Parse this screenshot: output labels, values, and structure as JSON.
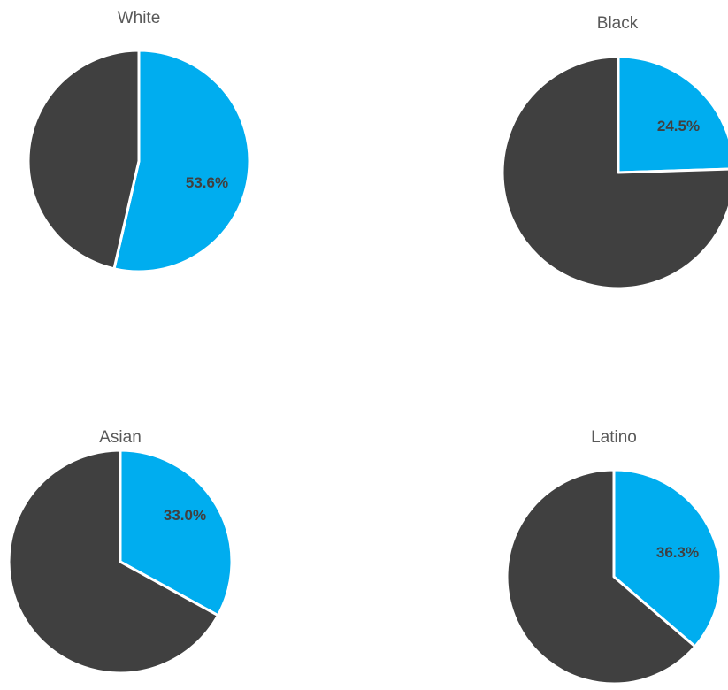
{
  "chart_data": [
    {
      "type": "pie",
      "title": "White",
      "categories": [
        "",
        ""
      ],
      "values": [
        53.6,
        46.4
      ],
      "data_labels": [
        "53.6%",
        ""
      ],
      "colors": [
        "#00ADEF",
        "#404040"
      ]
    },
    {
      "type": "pie",
      "title": "Black",
      "categories": [
        "",
        ""
      ],
      "values": [
        24.5,
        75.5
      ],
      "data_labels": [
        "24.5%",
        ""
      ],
      "colors": [
        "#00ADEF",
        "#404040"
      ]
    },
    {
      "type": "pie",
      "title": "Asian",
      "categories": [
        "",
        ""
      ],
      "values": [
        33.0,
        67.0
      ],
      "data_labels": [
        "33.0%",
        ""
      ],
      "colors": [
        "#00ADEF",
        "#404040"
      ]
    },
    {
      "type": "pie",
      "title": "Latino",
      "categories": [
        "",
        ""
      ],
      "values": [
        36.3,
        63.7
      ],
      "data_labels": [
        "36.3%",
        ""
      ],
      "colors": [
        "#00ADEF",
        "#404040"
      ]
    }
  ]
}
